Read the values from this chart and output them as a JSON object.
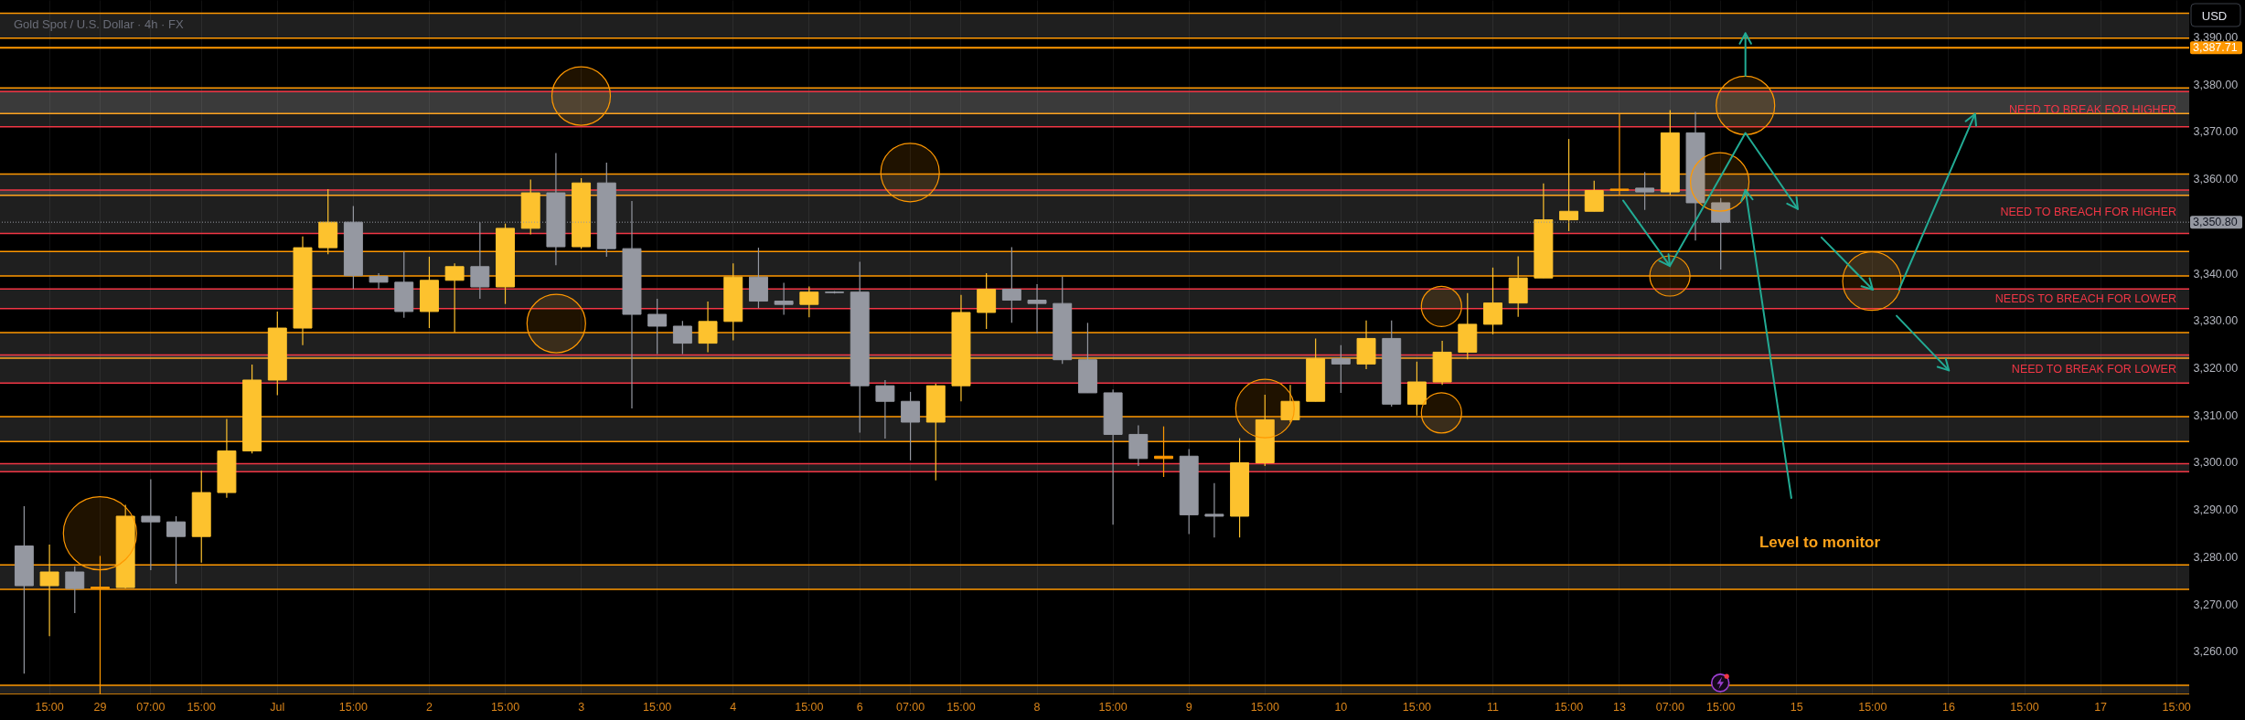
{
  "chart_data": {
    "type": "candlestick",
    "title": "Gold Spot / U.S. Dollar · 4h · FX",
    "ylabel": "USD",
    "categories": [
      null,
      "15:00",
      null,
      "29",
      null,
      "07:00",
      null,
      "15:00",
      null,
      null,
      "Jul",
      null,
      null,
      "15:00",
      null,
      null,
      "2",
      null,
      null,
      "15:00",
      null,
      null,
      "3",
      null,
      null,
      "15:00",
      null,
      null,
      "4",
      null,
      null,
      "15:00",
      null,
      "6",
      null,
      "07:00",
      null,
      "15:00",
      null,
      null,
      "8",
      null,
      null,
      "15:00",
      null,
      null,
      "9",
      null,
      null,
      "15:00",
      null,
      null,
      "10",
      null,
      null,
      "15:00",
      null,
      null,
      "11",
      null,
      null,
      "15:00",
      null,
      "13",
      null,
      "07:00",
      null,
      "15:00",
      null,
      null,
      "15",
      null,
      null,
      "15:00",
      null,
      null,
      "16",
      null,
      null,
      "15:00",
      null,
      null,
      "17",
      null,
      null,
      "15:00"
    ],
    "ohlc": [
      [
        3282.3,
        3290.7,
        3255.3,
        3273.9
      ],
      [
        3273.9,
        3282.6,
        3263.2,
        3276.8
      ],
      [
        3276.8,
        3278.0,
        3268.1,
        3273.3
      ],
      [
        3273.3,
        3280.2,
        3251.0,
        3273.6
      ],
      [
        3273.5,
        3291.0,
        3273.3,
        3288.6
      ],
      [
        3288.6,
        3296.4,
        3277.2,
        3287.4
      ],
      [
        3287.4,
        3288.6,
        3274.3,
        3284.3
      ],
      [
        3284.3,
        3298.2,
        3278.8,
        3293.6
      ],
      [
        3293.6,
        3309.2,
        3292.5,
        3302.4
      ],
      [
        3302.4,
        3320.7,
        3301.9,
        3317.4
      ],
      [
        3317.4,
        3331.9,
        3314.2,
        3328.4
      ],
      [
        3328.4,
        3347.8,
        3324.8,
        3345.4
      ],
      [
        3345.4,
        3357.8,
        3344.0,
        3350.8
      ],
      [
        3350.8,
        3354.2,
        3336.7,
        3339.5
      ],
      [
        3339.3,
        3340.0,
        3336.7,
        3338.1
      ],
      [
        3338.1,
        3344.6,
        3330.6,
        3331.9
      ],
      [
        3331.9,
        3343.5,
        3328.4,
        3338.5
      ],
      [
        3338.5,
        3342.1,
        3327.5,
        3341.4
      ],
      [
        3341.4,
        3350.8,
        3334.6,
        3337.1
      ],
      [
        3337.1,
        3350.5,
        3333.5,
        3349.5
      ],
      [
        3349.5,
        3359.8,
        3348.2,
        3357.0
      ],
      [
        3357.0,
        3365.4,
        3341.7,
        3345.6
      ],
      [
        3345.6,
        3360.1,
        3345.2,
        3359.1
      ],
      [
        3359.1,
        3363.4,
        3343.5,
        3345.2
      ],
      [
        3345.2,
        3355.3,
        3311.4,
        3331.3
      ],
      [
        3331.3,
        3334.6,
        3322.9,
        3328.8
      ],
      [
        3328.8,
        3329.9,
        3322.9,
        3325.2
      ],
      [
        3325.2,
        3334.0,
        3323.3,
        3329.8
      ],
      [
        3329.8,
        3342.1,
        3325.8,
        3339.2
      ],
      [
        3339.2,
        3345.4,
        3332.6,
        3334.1
      ],
      [
        3334.1,
        3338.0,
        3331.2,
        3333.4
      ],
      [
        3333.4,
        3337.2,
        3330.7,
        3336.0
      ],
      [
        3336.0,
        3336.2,
        3335.7,
        3335.9
      ],
      [
        3336.0,
        3342.4,
        3306.3,
        3316.2
      ],
      [
        3316.2,
        3317.4,
        3305.0,
        3312.9
      ],
      [
        3312.9,
        3314.9,
        3300.4,
        3308.5
      ],
      [
        3308.5,
        3316.6,
        3296.2,
        3316.2
      ],
      [
        3316.2,
        3335.4,
        3312.9,
        3331.7
      ],
      [
        3331.7,
        3340.0,
        3328.2,
        3336.6
      ],
      [
        3336.6,
        3345.5,
        3329.5,
        3334.3
      ],
      [
        3334.3,
        3337.7,
        3327.3,
        3333.6
      ],
      [
        3333.6,
        3339.3,
        3320.8,
        3321.7
      ],
      [
        3321.7,
        3329.5,
        3314.7,
        3314.7
      ],
      [
        3314.7,
        3315.4,
        3286.8,
        3305.9
      ],
      [
        3305.9,
        3307.8,
        3299.2,
        3300.8
      ],
      [
        3300.8,
        3307.6,
        3296.9,
        3301.3
      ],
      [
        3301.3,
        3302.8,
        3284.8,
        3288.9
      ],
      [
        3289.0,
        3295.6,
        3284.1,
        3288.6
      ],
      [
        3288.6,
        3305.1,
        3284.1,
        3299.9
      ],
      [
        3299.9,
        3314.3,
        3299.2,
        3309.0
      ],
      [
        3309.0,
        3316.4,
        3308.5,
        3312.9
      ],
      [
        3312.9,
        3326.2,
        3312.9,
        3321.9
      ],
      [
        3321.9,
        3324.8,
        3314.7,
        3320.8
      ],
      [
        3320.8,
        3330.0,
        3319.7,
        3326.2
      ],
      [
        3326.2,
        3330.0,
        3311.8,
        3312.3
      ],
      [
        3312.3,
        3321.3,
        3309.9,
        3317.0
      ],
      [
        3317.0,
        3325.7,
        3316.4,
        3323.3
      ],
      [
        3323.3,
        3335.8,
        3321.8,
        3329.2
      ],
      [
        3329.2,
        3341.2,
        3327.1,
        3333.7
      ],
      [
        3333.7,
        3343.6,
        3330.8,
        3339.0
      ],
      [
        3339.0,
        3359.0,
        3339.0,
        3351.3
      ],
      [
        3351.3,
        3368.4,
        3348.9,
        3353.1
      ],
      [
        3353.1,
        3359.6,
        3353.1,
        3357.5
      ],
      [
        3357.5,
        3373.7,
        3356.6,
        3357.8
      ],
      [
        3358.0,
        3361.4,
        3353.4,
        3357.2
      ],
      [
        3357.2,
        3374.5,
        3356.6,
        3369.7
      ],
      [
        3369.7,
        3374.1,
        3346.9,
        3354.9
      ],
      [
        3354.9,
        3355.9,
        3340.8,
        3350.8
      ],
      null,
      null,
      null,
      null,
      null,
      null,
      null,
      null,
      null,
      null,
      null,
      null,
      null,
      null,
      null,
      null,
      null,
      null
    ],
    "colors": [
      "#9598a1",
      "#fdc22e",
      "#9598a1",
      "#ff9800",
      "#fdc22e",
      "#9598a1",
      "#9598a1",
      "#fdc22e",
      "#fdc22e",
      "#fdc22e",
      "#fdc22e",
      "#fdc22e",
      "#fdc22e",
      "#9598a1",
      "#9598a1",
      "#9598a1",
      "#fdc22e",
      "#fdc22e",
      "#9598a1",
      "#fdc22e",
      "#fdc22e",
      "#9598a1",
      "#fdc22e",
      "#9598a1",
      "#9598a1",
      "#9598a1",
      "#9598a1",
      "#fdc22e",
      "#fdc22e",
      "#9598a1",
      "#9598a1",
      "#fdc22e",
      "#9598a1",
      "#9598a1",
      "#9598a1",
      "#9598a1",
      "#fdc22e",
      "#fdc22e",
      "#fdc22e",
      "#9598a1",
      "#9598a1",
      "#9598a1",
      "#9598a1",
      "#9598a1",
      "#9598a1",
      "#ff9800",
      "#9598a1",
      "#9598a1",
      "#fdc22e",
      "#fdc22e",
      "#fdc22e",
      "#fdc22e",
      "#9598a1",
      "#fdc22e",
      "#9598a1",
      "#fdc22e",
      "#fdc22e",
      "#fdc22e",
      "#fdc22e",
      "#fdc22e",
      "#fdc22e",
      "#fdc22e",
      "#fdc22e",
      "#ff9800",
      "#9598a1",
      "#fdc22e",
      "#9598a1",
      "#9598a1",
      null,
      null,
      null,
      null,
      null,
      null,
      null,
      null,
      null,
      null,
      null,
      null,
      null,
      null,
      null,
      null,
      null,
      null
    ],
    "ylim": [
      3250.9,
      3397.8
    ],
    "yticks": [
      {
        "value": 3260,
        "label": "3,260.00"
      },
      {
        "value": 3270,
        "label": "3,270.00"
      },
      {
        "value": 3280,
        "label": "3,280.00"
      },
      {
        "value": 3290,
        "label": "3,290.00"
      },
      {
        "value": 3300,
        "label": "3,300.00"
      },
      {
        "value": 3310,
        "label": "3,310.00"
      },
      {
        "value": 3320,
        "label": "3,320.00"
      },
      {
        "value": 3330,
        "label": "3,330.00"
      },
      {
        "value": 3340,
        "label": "3,340.00"
      },
      {
        "value": 3360,
        "label": "3,360.00"
      },
      {
        "value": 3370,
        "label": "3,370.00"
      },
      {
        "value": 3380,
        "label": "3,380.00"
      },
      {
        "value": 3390,
        "label": "3,390.00"
      }
    ],
    "grid": "x",
    "bands": [
      {
        "axis": "y",
        "from": 3389.75,
        "to": 3395.0,
        "color": "#ff9800"
      },
      {
        "axis": "y",
        "from": 3373.8,
        "to": 3379.2,
        "color": "#ff9800"
      },
      {
        "axis": "y",
        "from": 3356.5,
        "to": 3361.0,
        "color": "#ff9800"
      },
      {
        "axis": "y",
        "from": 3339.45,
        "to": 3344.6,
        "color": "#ff9800"
      },
      {
        "axis": "y",
        "from": 3322.05,
        "to": 3327.45,
        "color": "#ff9800"
      },
      {
        "axis": "y",
        "from": 3304.4,
        "to": 3309.65,
        "color": "#ff9800"
      },
      {
        "axis": "y",
        "from": 3273.15,
        "to": 3278.3,
        "color": "#ff9800"
      },
      {
        "axis": "y",
        "from": 3250.9,
        "to": 3252.85,
        "color": "#ff9800"
      },
      {
        "axis": "y",
        "from": 3371.0,
        "to": 3378.4,
        "label": "NEED TO BREAK FOR HIGHER",
        "color": "#f23645"
      },
      {
        "axis": "y",
        "from": 3348.4,
        "to": 3357.6,
        "label": "NEED TO BREACH FOR HIGHER",
        "color": "#f23645"
      },
      {
        "axis": "y",
        "from": 3332.5,
        "to": 3336.65,
        "label": "NEEDS TO BREACH FOR LOWER",
        "color": "#f23645"
      },
      {
        "axis": "y",
        "from": 3316.75,
        "to": 3322.7,
        "label": "NEED TO BREAK FOR LOWER",
        "color": "#f23645"
      },
      {
        "axis": "y",
        "from": 3298.0,
        "to": 3299.7,
        "color": "#f23645"
      }
    ],
    "ref_lines": [
      {
        "axis": "y",
        "value": 3387.71,
        "label": "3,387.71",
        "color": "#ff9800",
        "line_style": "solid"
      },
      {
        "axis": "y",
        "value": 3350.8,
        "label": "3,350.80",
        "color": "#9598a1",
        "line_style": "dotted"
      }
    ],
    "annotations": [
      "Level to monitor"
    ]
  }
}
